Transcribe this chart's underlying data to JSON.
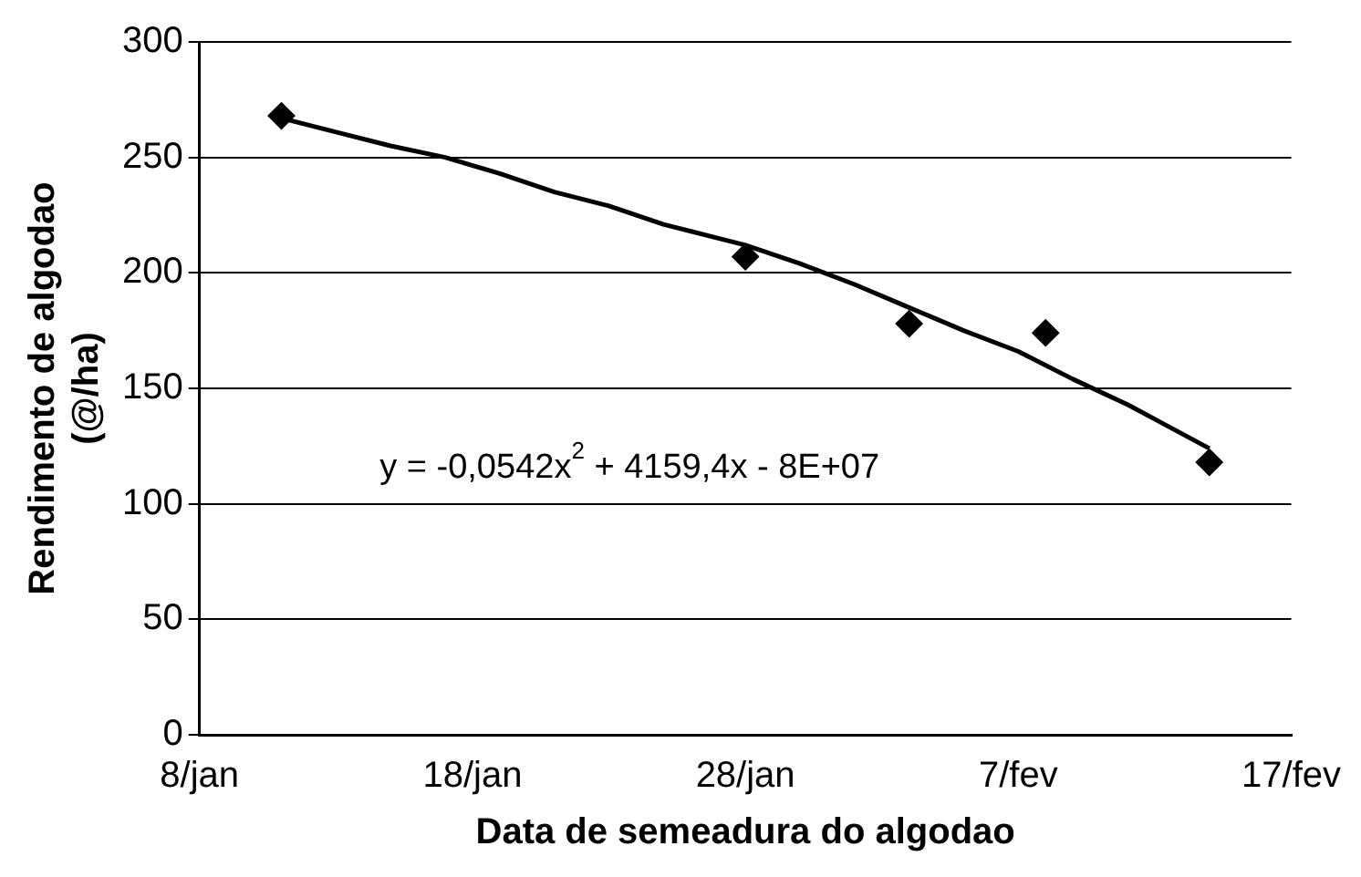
{
  "chart_data": {
    "type": "scatter",
    "xlabel": "Data de semeadura do algodao",
    "ylabel": "Rendimento de algodao\n(@/ha)",
    "series": [
      {
        "color": "#000000",
        "marker": "diamond",
        "x": [
          "--01-11",
          "--01-28",
          "--02-03",
          "--02-08",
          "--02-14"
        ],
        "values": [
          268,
          207,
          178,
          174,
          118
        ]
      },
      {
        "type": "line",
        "color": "#000000",
        "marker": "none",
        "x": [
          "--01-11",
          "--01-13",
          "--01-15",
          "--01-17",
          "--01-19",
          "--01-21",
          "--01-23",
          "--01-25",
          "--01-28",
          "--01-30",
          "--02-01",
          "--02-03",
          "--02-05",
          "--02-07",
          "--02-09",
          "--02-11",
          "--02-14"
        ],
        "values": [
          267,
          261,
          255,
          250,
          243,
          235,
          229,
          221,
          212,
          204,
          195,
          185,
          175,
          166,
          154,
          143,
          124
        ]
      }
    ],
    "xlim": [
      "--01-08",
      "--02-17"
    ],
    "xticks": [
      {
        "value": "--01-08",
        "label": "8/jan"
      },
      {
        "value": "--01-18",
        "label": "18/jan"
      },
      {
        "value": "--01-28",
        "label": "28/jan"
      },
      {
        "value": "--02-07",
        "label": "7/fev"
      },
      {
        "value": "--02-17",
        "label": "17/fev"
      }
    ],
    "ylim": [
      0,
      300
    ],
    "yticks": [
      0,
      50,
      100,
      150,
      200,
      250,
      300
    ],
    "grid": "y",
    "legend": false,
    "annotations": [
      "y = -0,0542x$^{2}$ + 4159,4x - 8E+07"
    ]
  }
}
